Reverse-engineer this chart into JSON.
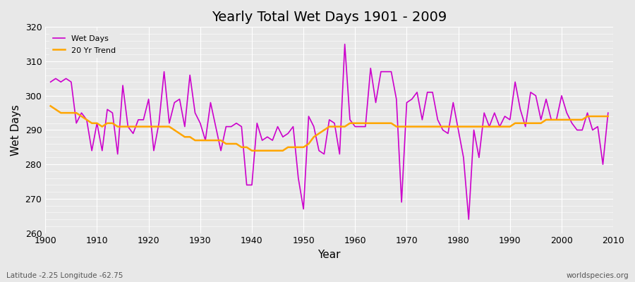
{
  "title": "Yearly Total Wet Days 1901 - 2009",
  "xlabel": "Year",
  "ylabel": "Wet Days",
  "footnote_left": "Latitude -2.25 Longitude -62.75",
  "footnote_right": "worldspecies.org",
  "line_color": "#cc00cc",
  "trend_color": "#ffa500",
  "bg_color": "#e8e8e8",
  "ylim": [
    260,
    320
  ],
  "years": [
    1901,
    1902,
    1903,
    1904,
    1905,
    1906,
    1907,
    1908,
    1909,
    1910,
    1911,
    1912,
    1913,
    1914,
    1915,
    1916,
    1917,
    1918,
    1919,
    1920,
    1921,
    1922,
    1923,
    1924,
    1925,
    1926,
    1927,
    1928,
    1929,
    1930,
    1931,
    1932,
    1933,
    1934,
    1935,
    1936,
    1937,
    1938,
    1939,
    1940,
    1941,
    1942,
    1943,
    1944,
    1945,
    1946,
    1947,
    1948,
    1949,
    1950,
    1951,
    1952,
    1953,
    1954,
    1955,
    1956,
    1957,
    1958,
    1959,
    1960,
    1961,
    1962,
    1963,
    1964,
    1965,
    1966,
    1967,
    1968,
    1969,
    1970,
    1971,
    1972,
    1973,
    1974,
    1975,
    1976,
    1977,
    1978,
    1979,
    1980,
    1981,
    1982,
    1983,
    1984,
    1985,
    1986,
    1987,
    1988,
    1989,
    1990,
    1991,
    1992,
    1993,
    1994,
    1995,
    1996,
    1997,
    1998,
    1999,
    2000,
    2001,
    2002,
    2003,
    2004,
    2005,
    2006,
    2007,
    2008,
    2009
  ],
  "wet_days": [
    304,
    305,
    304,
    305,
    304,
    292,
    295,
    293,
    284,
    292,
    284,
    296,
    295,
    283,
    303,
    291,
    289,
    293,
    293,
    299,
    284,
    292,
    307,
    292,
    298,
    299,
    291,
    306,
    295,
    292,
    287,
    298,
    291,
    284,
    291,
    291,
    292,
    291,
    274,
    274,
    292,
    287,
    288,
    287,
    291,
    288,
    289,
    291,
    276,
    267,
    294,
    291,
    284,
    283,
    293,
    292,
    283,
    315,
    293,
    291,
    291,
    291,
    308,
    298,
    307,
    307,
    307,
    299,
    269,
    298,
    299,
    301,
    293,
    301,
    301,
    293,
    290,
    289,
    298,
    290,
    282,
    264,
    290,
    282,
    295,
    291,
    295,
    291,
    294,
    293,
    304,
    296,
    291,
    301,
    300,
    293,
    299,
    293,
    293,
    300,
    295,
    292,
    290,
    290,
    295,
    290,
    291,
    280,
    295
  ],
  "trend_years": [
    1901,
    1902,
    1903,
    1904,
    1905,
    1906,
    1907,
    1908,
    1909,
    1910,
    1911,
    1912,
    1913,
    1914,
    1915,
    1916,
    1917,
    1918,
    1919,
    1920,
    1921,
    1922,
    1923,
    1924,
    1925,
    1926,
    1927,
    1928,
    1929,
    1930,
    1931,
    1932,
    1933,
    1934,
    1935,
    1936,
    1937,
    1938,
    1939,
    1940,
    1941,
    1942,
    1943,
    1944,
    1945,
    1946,
    1947,
    1948,
    1949,
    1950,
    1951,
    1952,
    1953,
    1954,
    1955,
    1956,
    1957,
    1958,
    1959,
    1960,
    1961,
    1962,
    1963,
    1964,
    1965,
    1966,
    1967,
    1968,
    1969,
    1970,
    1971,
    1972,
    1973,
    1974,
    1975,
    1976,
    1977,
    1978,
    1979,
    1980,
    1981,
    1982,
    1983,
    1984,
    1985,
    1986,
    1987,
    1988,
    1989,
    1990,
    1991,
    1992,
    1993,
    1994,
    1995,
    1996,
    1997,
    1998,
    1999,
    2000,
    2001,
    2002,
    2003,
    2004,
    2005,
    2006,
    2007,
    2008,
    2009
  ],
  "trend_vals": [
    297,
    296,
    295,
    295,
    295,
    295,
    294,
    293,
    292,
    292,
    291,
    292,
    292,
    291,
    291,
    291,
    291,
    291,
    291,
    291,
    291,
    291,
    291,
    291,
    290,
    289,
    288,
    288,
    287,
    287,
    287,
    287,
    287,
    287,
    286,
    286,
    286,
    285,
    285,
    284,
    284,
    284,
    284,
    284,
    284,
    284,
    285,
    285,
    285,
    285,
    286,
    288,
    289,
    290,
    291,
    291,
    291,
    291,
    292,
    292,
    292,
    292,
    292,
    292,
    292,
    292,
    292,
    291,
    291,
    291,
    291,
    291,
    291,
    291,
    291,
    291,
    291,
    291,
    291,
    291,
    291,
    291,
    291,
    291,
    291,
    291,
    291,
    291,
    291,
    291,
    292,
    292,
    292,
    292,
    292,
    292,
    293,
    293,
    293,
    293,
    293,
    293,
    293,
    293,
    294,
    294,
    294,
    294,
    294
  ]
}
